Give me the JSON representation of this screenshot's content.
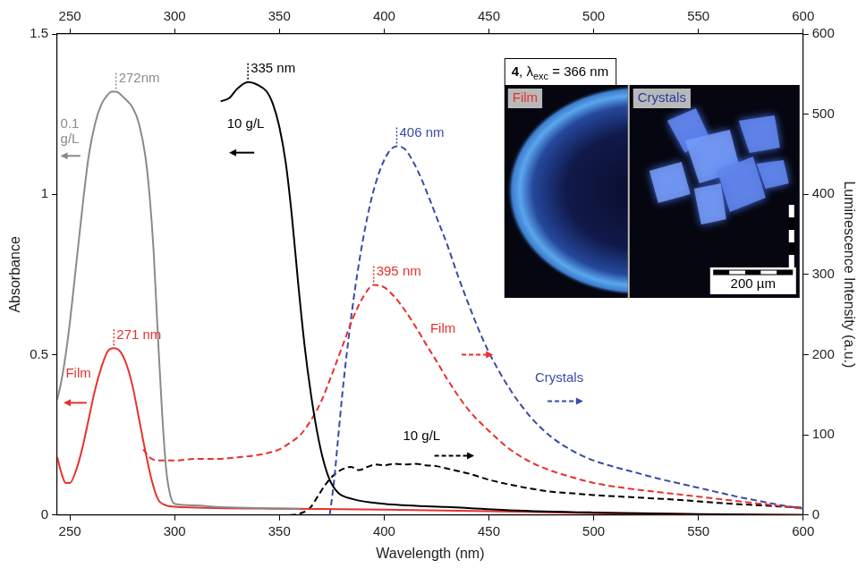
{
  "chart_data": {
    "type": "line",
    "x_label": "Wavelength (nm)",
    "y_label": "Absorbance",
    "y2_label": "Luminescence Intensity (a.u.)",
    "xlim": [
      244,
      600
    ],
    "xticks": [
      250,
      300,
      350,
      400,
      450,
      500,
      550,
      600
    ],
    "ylim": [
      0,
      1.5
    ],
    "yticks": [
      0,
      0.5,
      1,
      1.5
    ],
    "y2lim": [
      0,
      600
    ],
    "y2ticks": [
      0,
      100,
      200,
      300,
      400,
      500,
      600
    ],
    "grid": false,
    "series": [
      {
        "name": "0.1 g/L",
        "color": "#8a8a8a",
        "axis": "y",
        "line_style": "solid",
        "marker": "none",
        "x": [
          244,
          246,
          248,
          250,
          253,
          256,
          259,
          262,
          265,
          268,
          270,
          272,
          276,
          280,
          283,
          286,
          288,
          290,
          292,
          294,
          296,
          298,
          300,
          310,
          320,
          340,
          360
        ],
        "values": [
          0.36,
          0.42,
          0.5,
          0.6,
          0.78,
          0.96,
          1.12,
          1.22,
          1.28,
          1.31,
          1.32,
          1.32,
          1.3,
          1.27,
          1.22,
          1.12,
          1.0,
          0.82,
          0.56,
          0.32,
          0.14,
          0.06,
          0.035,
          0.03,
          0.025,
          0.022,
          0.02
        ]
      },
      {
        "name": "10 g/L",
        "color": "#000000",
        "axis": "y",
        "line_style": "solid",
        "marker": "none",
        "x": [
          322,
          326,
          330,
          335,
          340,
          344,
          347,
          350,
          353,
          356,
          359,
          362,
          365,
          368,
          371,
          374,
          378,
          385,
          400,
          430,
          460,
          500,
          550,
          600
        ],
        "values": [
          1.29,
          1.3,
          1.33,
          1.35,
          1.34,
          1.32,
          1.28,
          1.21,
          1.1,
          0.93,
          0.72,
          0.53,
          0.38,
          0.26,
          0.17,
          0.11,
          0.07,
          0.05,
          0.035,
          0.025,
          0.015,
          0.008,
          0.003,
          0
        ]
      },
      {
        "name": "Film",
        "color": "#e8312e",
        "axis": "y",
        "line_style": "solid",
        "marker": "none",
        "x": [
          244,
          246,
          248,
          250,
          253,
          256,
          259,
          262,
          265,
          268,
          271,
          274,
          277,
          280,
          283,
          286,
          289,
          292,
          296,
          300,
          320,
          350,
          400,
          450,
          500,
          550,
          600
        ],
        "values": [
          0.18,
          0.13,
          0.1,
          0.1,
          0.14,
          0.21,
          0.3,
          0.39,
          0.46,
          0.51,
          0.52,
          0.51,
          0.47,
          0.4,
          0.3,
          0.2,
          0.11,
          0.05,
          0.03,
          0.026,
          0.022,
          0.02,
          0.017,
          0.012,
          0.006,
          0.002,
          0
        ]
      },
      {
        "name": "Film",
        "color": "#e8312e",
        "axis": "y2",
        "line_style": "dashed",
        "marker": "none",
        "x": [
          285,
          288,
          292,
          300,
          310,
          320,
          330,
          340,
          350,
          355,
          360,
          365,
          370,
          375,
          380,
          385,
          390,
          395,
          400,
          405,
          410,
          415,
          420,
          425,
          430,
          440,
          450,
          460,
          470,
          480,
          490,
          500,
          520,
          540,
          560,
          580,
          600
        ],
        "values": [
          82,
          72,
          68,
          68,
          70,
          70,
          72,
          75,
          82,
          90,
          100,
          118,
          142,
          175,
          210,
          245,
          272,
          287,
          284,
          272,
          255,
          235,
          213,
          192,
          170,
          132,
          105,
          82,
          66,
          55,
          47,
          40,
          32,
          26,
          20,
          14,
          8
        ]
      },
      {
        "name": "Crystals",
        "color": "#3a4ba6",
        "axis": "y2",
        "line_style": "dashed",
        "marker": "none",
        "x": [
          374,
          376,
          378,
          380,
          383,
          386,
          390,
          394,
          398,
          402,
          406,
          410,
          414,
          418,
          422,
          426,
          430,
          435,
          440,
          445,
          450,
          460,
          470,
          480,
          490,
          500,
          510,
          520,
          530,
          540,
          550,
          560,
          570,
          580,
          590,
          600
        ],
        "values": [
          0,
          40,
          95,
          150,
          220,
          280,
          345,
          395,
          430,
          452,
          460,
          456,
          440,
          418,
          392,
          365,
          338,
          300,
          265,
          232,
          203,
          157,
          122,
          97,
          80,
          68,
          60,
          53,
          46,
          40,
          34,
          28,
          22,
          17,
          12,
          8
        ]
      },
      {
        "name": "10 g/L",
        "color": "#000000",
        "axis": "y2",
        "line_style": "dashed",
        "marker": "none",
        "x": [
          355,
          360,
          365,
          368,
          372,
          376,
          380,
          384,
          388,
          392,
          396,
          400,
          405,
          410,
          415,
          420,
          425,
          430,
          435,
          440,
          450,
          460,
          470,
          480,
          490,
          500,
          520,
          540,
          560,
          580,
          600
        ],
        "values": [
          0,
          2,
          10,
          22,
          38,
          50,
          57,
          60,
          56,
          60,
          63,
          62,
          64,
          63,
          64,
          62,
          61,
          58,
          55,
          52,
          44,
          38,
          33,
          29,
          27,
          25,
          22,
          19,
          15,
          12,
          9
        ]
      }
    ],
    "annotations": [
      {
        "text": "272nm",
        "x": 272,
        "y": 1.32,
        "axis": "y",
        "color": "#8a8a8a"
      },
      {
        "text": "335 nm",
        "x": 335,
        "y": 1.35,
        "axis": "y",
        "color": "#000000"
      },
      {
        "text": "271 nm",
        "x": 271,
        "y": 0.52,
        "axis": "y",
        "color": "#e8312e"
      },
      {
        "text": "395 nm",
        "x": 395,
        "y": 287,
        "axis": "y2",
        "color": "#e8312e"
      },
      {
        "text": "406 nm",
        "x": 406,
        "y": 460,
        "axis": "y2",
        "color": "#3a4ba6"
      }
    ]
  },
  "inset": {
    "title": [
      "4",
      ", λ",
      "exc",
      " = 366 nm"
    ],
    "panels": [
      {
        "label": "Film",
        "color": "#e8312e"
      },
      {
        "label": "Crystals",
        "color": "#2b3b9c"
      }
    ],
    "scale_bar": "200 µm"
  }
}
